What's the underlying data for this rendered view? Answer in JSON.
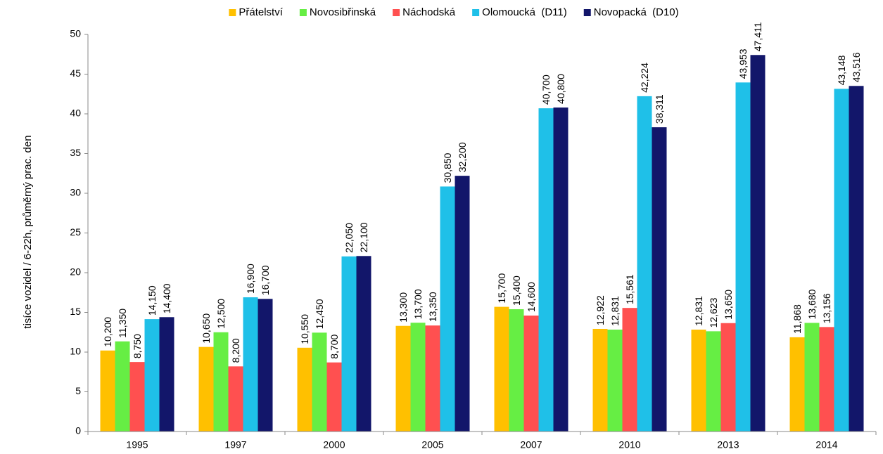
{
  "chart_data": {
    "type": "bar",
    "y_label": "tisíce vozidel / 6-22h, průměrný prac. den",
    "categories": [
      "1995",
      "1997",
      "2000",
      "2005",
      "2007",
      "2010",
      "2013",
      "2014"
    ],
    "series": [
      {
        "name": "Přátelství",
        "color": "#ffc000",
        "values": [
          10.2,
          10.65,
          10.55,
          13.3,
          15.7,
          12.922,
          12.831,
          11.868
        ],
        "value_labels": [
          "10,200",
          "10,650",
          "10,550",
          "13,300",
          "15,700",
          "12,922",
          "12,831",
          "11,868"
        ]
      },
      {
        "name": "Novosibřinská",
        "color": "#66ee44",
        "values": [
          11.35,
          12.5,
          12.45,
          13.7,
          15.4,
          12.831,
          12.623,
          13.68
        ],
        "value_labels": [
          "11,350",
          "12,500",
          "12,450",
          "13,700",
          "15,400",
          "12,831",
          "12,623",
          "13,680"
        ]
      },
      {
        "name": "Náchodská",
        "color": "#ff5050",
        "values": [
          8.75,
          8.2,
          8.7,
          13.35,
          14.6,
          15.561,
          13.65,
          13.156
        ],
        "value_labels": [
          "8,750",
          "8,200",
          "8,700",
          "13,350",
          "14,600",
          "15,561",
          "13,650",
          "13,156"
        ]
      },
      {
        "name": "Olomoucká  (D11)",
        "color": "#1fc0e8",
        "values": [
          14.15,
          16.9,
          22.05,
          30.85,
          40.7,
          42.224,
          43.953,
          43.148
        ],
        "value_labels": [
          "14,150",
          "16,900",
          "22,050",
          "30,850",
          "40,700",
          "42,224",
          "43,953",
          "43,148"
        ]
      },
      {
        "name": "Novopacká  (D10)",
        "color": "#12166a",
        "values": [
          14.4,
          16.7,
          22.1,
          32.2,
          40.8,
          38.311,
          47.411,
          43.516
        ],
        "value_labels": [
          "14,400",
          "16,700",
          "22,100",
          "32,200",
          "40,800",
          "38,311",
          "47,411",
          "43,516"
        ]
      }
    ],
    "ylim": [
      0,
      50
    ],
    "yticks": [
      0,
      5,
      10,
      15,
      20,
      25,
      30,
      35,
      40,
      45,
      50
    ],
    "grid": false,
    "legend": "top"
  }
}
